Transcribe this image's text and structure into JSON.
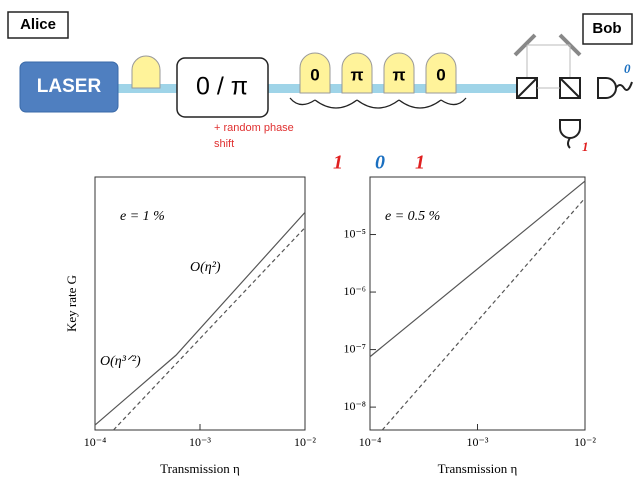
{
  "diagram": {
    "alice": "Alice",
    "bob": "Bob",
    "laser": "LASER",
    "modulator": "0 / π",
    "phase_note": [
      "+ random phase",
      "shift"
    ],
    "pulses": [
      "0",
      "π",
      "π",
      "0"
    ],
    "bits": [
      "1",
      "0",
      "1"
    ],
    "detectors": [
      "0",
      "1"
    ]
  },
  "chart_data": [
    {
      "type": "line",
      "xlog": true,
      "ylog": true,
      "ylabel": "Key rate G",
      "xlabel": "Transmission η",
      "annotations": [
        "e = 1 %",
        "O(η²)",
        "O(η³ᐟ²)"
      ],
      "xlim": [
        0.0001,
        0.01
      ],
      "xticks": [
        {
          "value": 0.0001,
          "label": "10⁻⁴"
        },
        {
          "value": 0.001,
          "label": "10⁻³"
        },
        {
          "value": 0.01,
          "label": "10⁻²"
        }
      ],
      "ylim": [
        1e-09,
        0.0001
      ],
      "series": [
        {
          "style": "solid",
          "color": "#555555",
          "x": [
            0.0001,
            0.00059,
            0.01
          ],
          "values": [
            1.25e-09,
            3e-08,
            2e-05
          ]
        },
        {
          "style": "dashed",
          "color": "#555555",
          "x": [
            0.00015,
            0.01
          ],
          "values": [
            1e-09,
            1e-05
          ]
        }
      ]
    },
    {
      "type": "line",
      "xlog": true,
      "ylog": true,
      "xlabel": "Transmission η",
      "annotations": [
        "e = 0.5 %"
      ],
      "xlim": [
        0.0001,
        0.01
      ],
      "xticks": [
        {
          "value": 0.0001,
          "label": "10⁻⁴"
        },
        {
          "value": 0.001,
          "label": "10⁻³"
        },
        {
          "value": 0.01,
          "label": "10⁻²"
        }
      ],
      "ylim": [
        4e-09,
        0.0001
      ],
      "yticks": [
        {
          "value": 1e-08,
          "label": "10⁻⁸"
        },
        {
          "value": 1e-07,
          "label": "10⁻⁷"
        },
        {
          "value": 1e-06,
          "label": "10⁻⁶"
        },
        {
          "value": 1e-05,
          "label": "10⁻⁵"
        }
      ],
      "series": [
        {
          "style": "solid",
          "color": "#555555",
          "x": [
            0.0001,
            0.01
          ],
          "values": [
            7.5e-08,
            8.5e-05
          ]
        },
        {
          "style": "dashed",
          "color": "#555555",
          "x": [
            0.00013,
            0.01
          ],
          "values": [
            4e-09,
            4.3e-05
          ]
        }
      ]
    }
  ]
}
